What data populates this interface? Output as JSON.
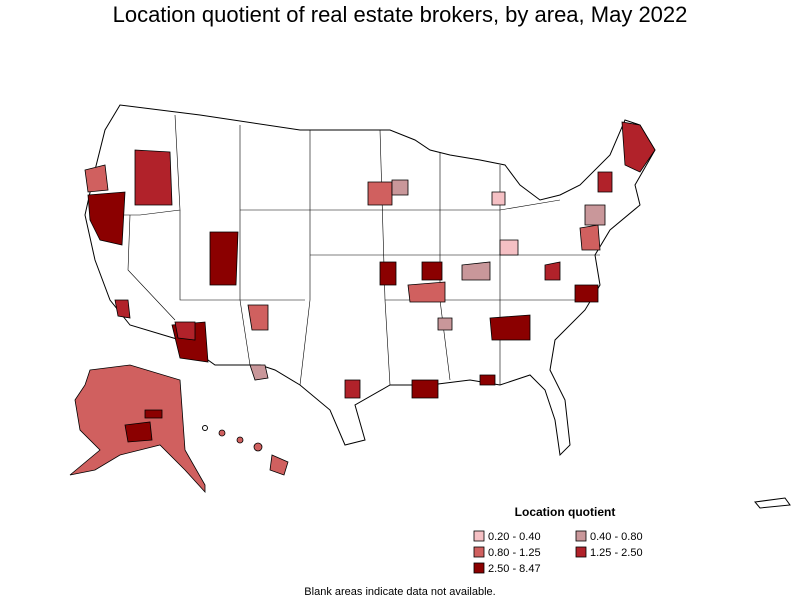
{
  "title": "Location quotient of real estate brokers, by area, May 2022",
  "legend": {
    "title": "Location quotient",
    "items": [
      {
        "label": "0.20 - 0.40",
        "color": "#f5c0c4"
      },
      {
        "label": "0.40 - 0.80",
        "color": "#c9979a"
      },
      {
        "label": "0.80 - 1.25",
        "color": "#d0605f"
      },
      {
        "label": "1.25 - 2.50",
        "color": "#b1222a"
      },
      {
        "label": "2.50 - 8.47",
        "color": "#8b0000"
      }
    ]
  },
  "footnote": "Blank areas indicate data not available."
}
